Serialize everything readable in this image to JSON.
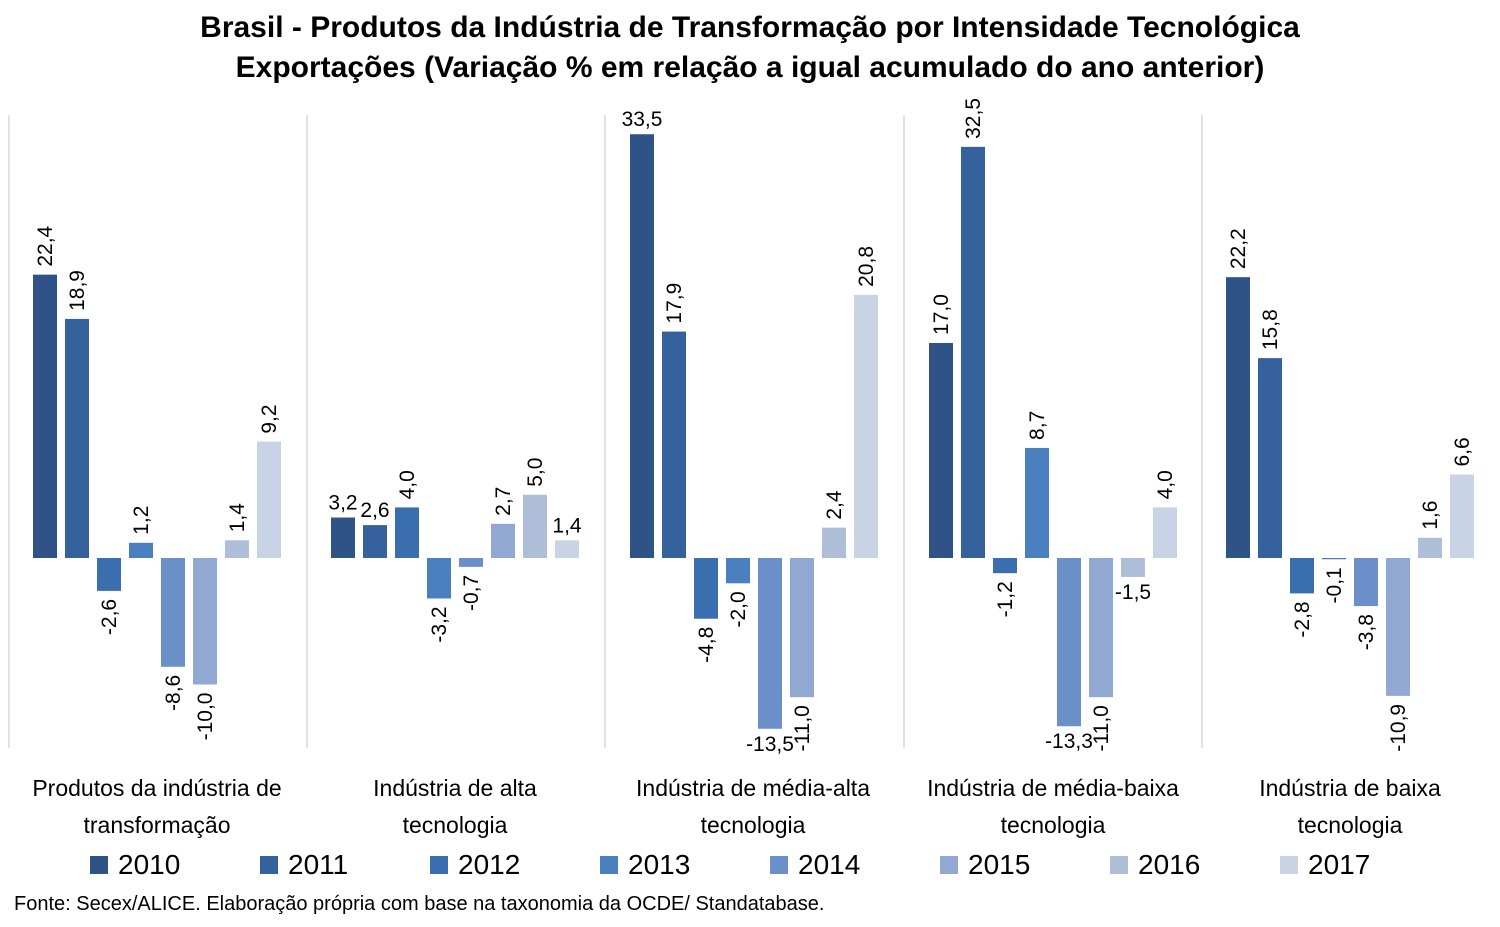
{
  "title": {
    "line1": "Brasil - Produtos da Indústria de Transformação por Intensidade Tecnológica",
    "line2": "Exportações (Variação % em relação a igual acumulado do ano anterior)"
  },
  "source": "Fonte: Secex/ALICE. Elaboração própria com base na taxonomia da OCDE/ Standatabase.",
  "chart_data": {
    "type": "bar",
    "title": "Brasil - Produtos da Indústria de Transformação por Intensidade Tecnológica — Exportações (Variação % em relação a igual acumulado do ano anterior)",
    "xlabel": "",
    "ylabel": "",
    "ylim": [
      -15,
      35
    ],
    "grid": false,
    "legend_position": "bottom",
    "categories": [
      [
        "Produtos da indústria de",
        "transformação"
      ],
      [
        "Indústria de alta",
        "tecnologia"
      ],
      [
        "Indústria de média-alta",
        "tecnologia"
      ],
      [
        "Indústria de média-baixa",
        "tecnologia"
      ],
      [
        "Indústria de baixa",
        "tecnologia"
      ]
    ],
    "series": [
      {
        "name": "2010",
        "color": "#2f5386",
        "values": [
          22.4,
          3.2,
          33.5,
          17.0,
          22.2
        ],
        "labels": [
          "22,4",
          "3,2",
          "33,5",
          "17,0",
          "22,2"
        ]
      },
      {
        "name": "2011",
        "color": "#35619d",
        "values": [
          18.9,
          2.6,
          17.9,
          32.5,
          15.8
        ],
        "labels": [
          "18,9",
          "2,6",
          "17,9",
          "32,5",
          "15,8"
        ]
      },
      {
        "name": "2012",
        "color": "#3b6eaf",
        "values": [
          -2.6,
          4.0,
          -4.8,
          -1.2,
          -2.8
        ],
        "labels": [
          "-2,6",
          "4,0",
          "-4,8",
          "-1,2",
          "-2,8"
        ]
      },
      {
        "name": "2013",
        "color": "#4a80c0",
        "values": [
          1.2,
          -3.2,
          -2.0,
          8.7,
          -0.1
        ],
        "labels": [
          "1,2",
          "-3,2",
          "-2,0",
          "8,7",
          "-0,1"
        ]
      },
      {
        "name": "2014",
        "color": "#6b8fc8",
        "values": [
          -8.6,
          -0.7,
          -13.5,
          -13.3,
          -3.8
        ],
        "labels": [
          "-8,6",
          "-0,7",
          "-13,5",
          "-13,3",
          "-3,8"
        ]
      },
      {
        "name": "2015",
        "color": "#91a8d3",
        "values": [
          -10.0,
          2.7,
          -11.0,
          -11.0,
          -10.9
        ],
        "labels": [
          "-10,0",
          "2,7",
          "-11,0",
          "-11,0",
          "-10,9"
        ]
      },
      {
        "name": "2016",
        "color": "#aebed9",
        "values": [
          1.4,
          5.0,
          2.4,
          -1.5,
          1.6
        ],
        "labels": [
          "1,4",
          "5,0",
          "2,4",
          "-1,5",
          "1,6"
        ]
      },
      {
        "name": "2017",
        "color": "#c9d3e6",
        "values": [
          9.2,
          1.4,
          20.8,
          4.0,
          6.6
        ],
        "labels": [
          "9,2",
          "1,4",
          "20,8",
          "4,0",
          "6,6"
        ]
      }
    ],
    "horizontal_labels": [
      [
        false,
        false,
        false,
        false,
        false,
        false,
        false,
        false
      ],
      [
        true,
        true,
        false,
        false,
        false,
        false,
        false,
        true
      ],
      [
        true,
        false,
        false,
        false,
        true,
        false,
        false,
        false
      ],
      [
        false,
        false,
        false,
        false,
        true,
        false,
        true,
        false
      ],
      [
        false,
        false,
        false,
        false,
        false,
        false,
        false,
        false
      ]
    ]
  }
}
